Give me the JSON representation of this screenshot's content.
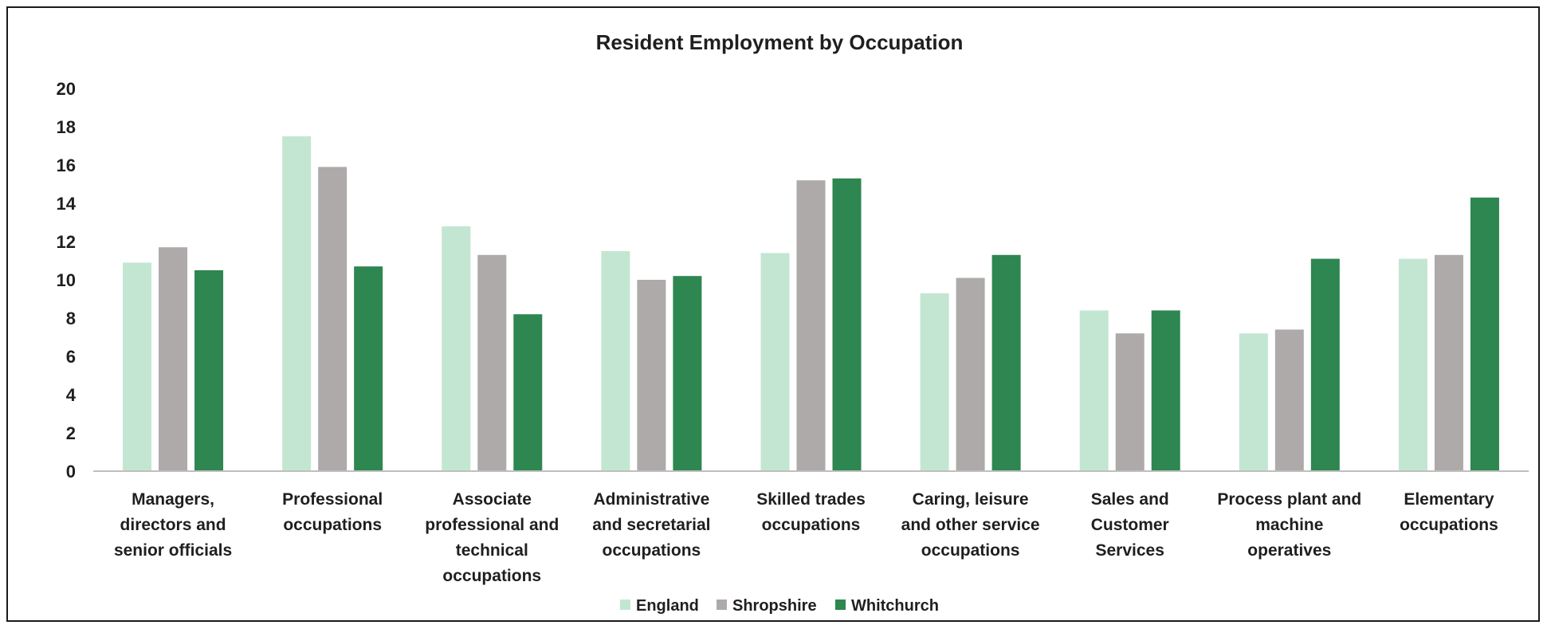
{
  "chart_data": {
    "type": "bar",
    "title": "Resident Employment by Occupation",
    "xlabel": "",
    "ylabel": "",
    "ylim": [
      0,
      20
    ],
    "yticks": [
      "0",
      "2",
      "4",
      "6",
      "8",
      "10",
      "12",
      "14",
      "16",
      "18",
      "20"
    ],
    "grid": false,
    "legend_position": "bottom",
    "categories": [
      [
        "Managers,",
        "directors and",
        "senior officials"
      ],
      [
        "Professional",
        "occupations"
      ],
      [
        "Associate",
        "professional and",
        "technical",
        "occupations"
      ],
      [
        "Administrative",
        "and secretarial",
        "occupations"
      ],
      [
        "Skilled trades",
        "occupations"
      ],
      [
        "Caring, leisure",
        "and other service",
        "occupations"
      ],
      [
        "Sales and",
        "Customer",
        "Services"
      ],
      [
        "Process plant and",
        "machine",
        "operatives"
      ],
      [
        "Elementary",
        "occupations"
      ]
    ],
    "series": [
      {
        "name": "England",
        "color": "#c3e6d2",
        "values": [
          10.9,
          17.5,
          12.8,
          11.5,
          11.4,
          9.3,
          8.4,
          7.2,
          11.1
        ]
      },
      {
        "name": "Shropshire",
        "color": "#aeaaaa",
        "values": [
          11.7,
          15.9,
          11.3,
          10.0,
          15.2,
          10.1,
          7.2,
          7.4,
          11.3
        ]
      },
      {
        "name": "Whitchurch",
        "color": "#2e8650",
        "values": [
          10.5,
          10.7,
          8.2,
          10.2,
          15.3,
          11.3,
          8.4,
          11.1,
          14.3
        ]
      }
    ]
  }
}
